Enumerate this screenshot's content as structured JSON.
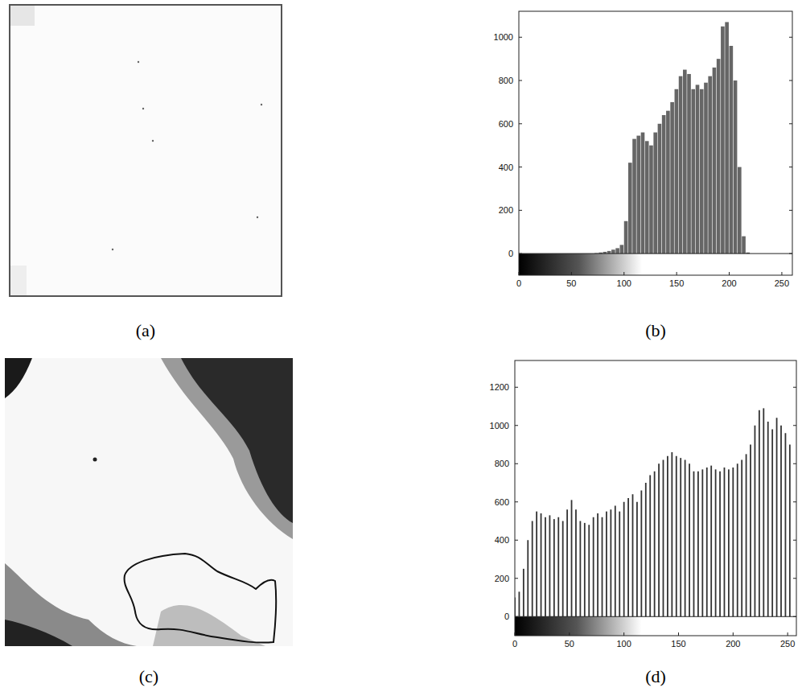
{
  "panel_labels": [
    "(a)",
    "(b)",
    "(c)",
    "(d)"
  ],
  "chart_data": [
    {
      "type": "histogram",
      "color": "#666666",
      "grid": false,
      "bins": [
        0,
        4,
        8,
        12,
        16,
        20,
        24,
        28,
        32,
        36,
        40,
        44,
        48,
        52,
        56,
        60,
        64,
        68,
        72,
        76,
        80,
        84,
        88,
        92,
        96,
        100,
        104,
        108,
        112,
        116,
        120,
        124,
        128,
        132,
        136,
        140,
        144,
        148,
        152,
        156,
        160,
        164,
        168,
        172,
        176,
        180,
        184,
        188,
        192,
        196,
        200,
        204,
        208,
        212,
        216,
        220,
        224,
        228,
        232,
        236,
        240,
        244,
        248,
        252,
        256
      ],
      "counts": [
        0,
        0,
        0,
        0,
        0,
        0,
        0,
        0,
        0,
        0,
        0,
        0,
        0,
        0,
        0,
        0,
        0,
        0,
        2,
        5,
        8,
        12,
        18,
        25,
        40,
        150,
        420,
        530,
        545,
        560,
        520,
        500,
        560,
        600,
        640,
        660,
        700,
        760,
        820,
        850,
        830,
        760,
        780,
        760,
        790,
        820,
        860,
        900,
        1050,
        1070,
        960,
        800,
        400,
        80,
        5,
        0,
        0,
        0,
        0,
        0,
        0,
        0,
        0,
        0
      ],
      "xlim": [
        0,
        260
      ],
      "xticks": [
        0,
        50,
        100,
        150,
        200,
        250
      ],
      "ylim": [
        -100,
        1120
      ],
      "yticks": [
        0,
        200,
        400,
        600,
        800,
        1000
      ]
    },
    {
      "type": "bar",
      "color": "#333333",
      "grid": false,
      "x": [
        0,
        4,
        8,
        12,
        16,
        20,
        24,
        28,
        32,
        36,
        40,
        44,
        48,
        52,
        56,
        60,
        64,
        68,
        72,
        76,
        80,
        84,
        88,
        92,
        96,
        100,
        104,
        108,
        112,
        116,
        120,
        124,
        128,
        132,
        136,
        140,
        144,
        148,
        152,
        156,
        160,
        164,
        168,
        172,
        176,
        180,
        184,
        188,
        192,
        196,
        200,
        204,
        208,
        212,
        216,
        220,
        224,
        228,
        232,
        236,
        240,
        244,
        248,
        252
      ],
      "values": [
        100,
        130,
        250,
        400,
        500,
        550,
        540,
        520,
        530,
        510,
        520,
        500,
        560,
        610,
        560,
        500,
        490,
        480,
        520,
        540,
        520,
        550,
        560,
        580,
        550,
        600,
        620,
        640,
        600,
        660,
        700,
        740,
        760,
        800,
        820,
        840,
        860,
        840,
        830,
        820,
        800,
        760,
        760,
        770,
        780,
        790,
        770,
        760,
        780,
        770,
        780,
        800,
        820,
        850,
        900,
        1000,
        1080,
        1090,
        1020,
        980,
        1040,
        1000,
        960,
        900
      ],
      "xlim": [
        0,
        258
      ],
      "xticks": [
        0,
        50,
        100,
        150,
        200,
        250
      ],
      "ylim": [
        -100,
        1340
      ],
      "yticks": [
        0,
        200,
        400,
        600,
        800,
        1000,
        1200
      ]
    }
  ]
}
